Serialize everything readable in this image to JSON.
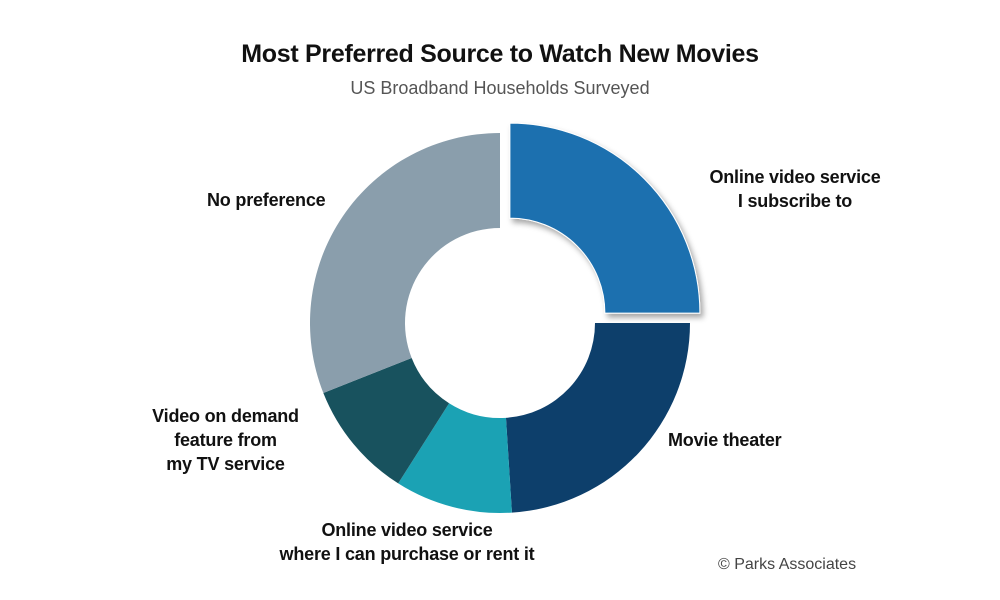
{
  "chart_data": {
    "type": "pie",
    "title": "Most Preferred Source to Watch New Movies",
    "subtitle": "US Broadband Households Surveyed",
    "categories": [
      "Online video service\nI subscribe to",
      "Movie theater",
      "Online video service\nwhere I can purchase or rent it",
      "Video on demand\nfeature from\nmy TV service",
      "No preference"
    ],
    "values": [
      25,
      24,
      10,
      10,
      31
    ],
    "colors": [
      "#1a6faf",
      "#0d3f6b",
      "#1ba2b4",
      "#18525e",
      "#8a9eac"
    ],
    "exploded": [
      true,
      false,
      false,
      false,
      false
    ],
    "donut": true,
    "legend": "none"
  },
  "source": "© Parks Associates"
}
